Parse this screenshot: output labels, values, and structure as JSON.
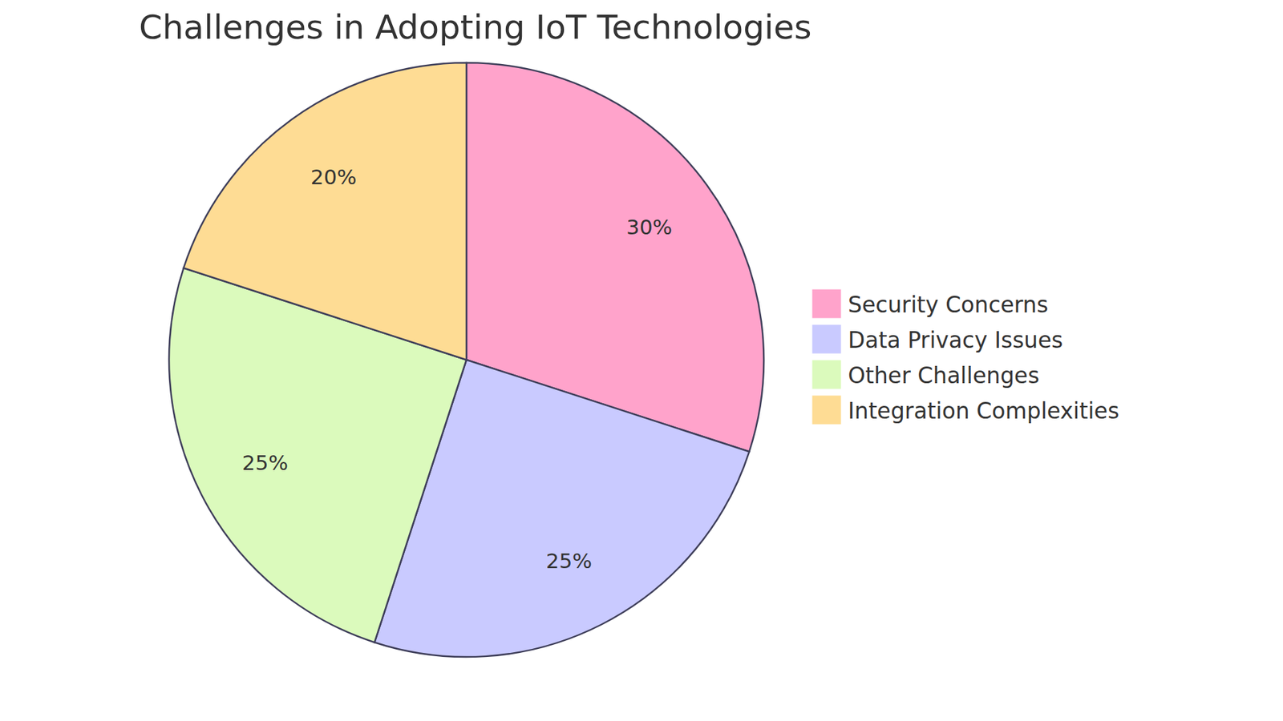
{
  "chart_data": {
    "type": "pie",
    "title": "Challenges in Adopting IoT Technologies",
    "categories": [
      "Security Concerns",
      "Data Privacy Issues",
      "Other Challenges",
      "Integration Complexities"
    ],
    "values": [
      30,
      25,
      25,
      20
    ],
    "value_labels": [
      "30%",
      "25%",
      "25%",
      "20%"
    ],
    "colors": [
      "#ffa3cb",
      "#c9caff",
      "#dbfabc",
      "#fedc94"
    ],
    "data_labels": true,
    "legend": "right"
  }
}
